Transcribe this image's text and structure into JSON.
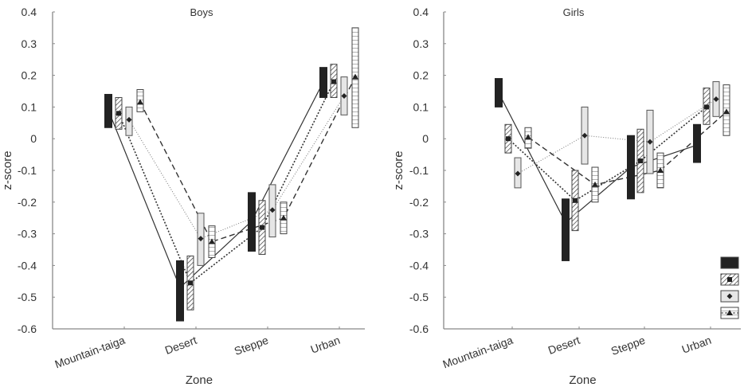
{
  "chart_data": [
    {
      "type": "line",
      "title": "Boys",
      "xlabel": "Zone",
      "ylabel": "z-score",
      "categories": [
        "Mountain-taiga",
        "Desert",
        "Steppe",
        "Urban"
      ],
      "ylim": [
        -0.6,
        0.4
      ],
      "yticks": [
        "0.4",
        "0.3",
        "0.2",
        "0.1",
        "0",
        "-0.1",
        "-0.2",
        "-0.3",
        "-0.4",
        "-0.5",
        "-0.6"
      ],
      "grid": false,
      "series": [
        {
          "style": "solid-black-bar",
          "mean": [
            0.09,
            -0.47,
            -0.26,
            0.18
          ],
          "low": [
            0.035,
            -0.575,
            -0.355,
            0.13
          ],
          "high": [
            0.14,
            -0.385,
            -0.17,
            0.225
          ]
        },
        {
          "style": "hatched-square",
          "mean": [
            0.08,
            -0.455,
            -0.28,
            0.18
          ],
          "low": [
            0.03,
            -0.54,
            -0.365,
            0.13
          ],
          "high": [
            0.13,
            -0.37,
            -0.195,
            0.235
          ]
        },
        {
          "style": "light-diamond",
          "mean": [
            0.06,
            -0.315,
            -0.225,
            0.135
          ],
          "low": [
            0.01,
            -0.4,
            -0.31,
            0.075
          ],
          "high": [
            0.1,
            -0.235,
            -0.145,
            0.195
          ]
        },
        {
          "style": "striped-triangle",
          "mean": [
            0.115,
            -0.325,
            -0.25,
            0.195
          ],
          "low": [
            0.085,
            -0.375,
            -0.3,
            0.035
          ],
          "high": [
            0.155,
            -0.275,
            -0.2,
            0.35
          ]
        }
      ]
    },
    {
      "type": "line",
      "title": "Girls",
      "xlabel": "Zone",
      "ylabel": "z-score",
      "categories": [
        "Mountain-taiga",
        "Desert",
        "Steppe",
        "Urban"
      ],
      "ylim": [
        -0.6,
        0.4
      ],
      "yticks": [
        "0.4",
        "0.3",
        "0.2",
        "0.1",
        "0",
        "-0.1",
        "-0.2",
        "-0.3",
        "-0.4",
        "-0.5",
        "-0.6"
      ],
      "grid": false,
      "legend": "bottom-right",
      "series": [
        {
          "style": "solid-black-bar",
          "mean": [
            0.145,
            -0.265,
            -0.09,
            -0.02
          ],
          "low": [
            0.1,
            -0.385,
            -0.19,
            -0.075
          ],
          "high": [
            0.19,
            -0.19,
            0.01,
            0.045
          ]
        },
        {
          "style": "hatched-square",
          "mean": [
            0.0,
            -0.195,
            -0.07,
            0.1
          ],
          "low": [
            -0.045,
            -0.29,
            -0.17,
            0.045
          ],
          "high": [
            0.045,
            -0.1,
            0.03,
            0.16
          ]
        },
        {
          "style": "light-diamond",
          "mean": [
            -0.11,
            0.01,
            -0.01,
            0.125
          ],
          "low": [
            -0.155,
            -0.08,
            -0.11,
            0.07
          ],
          "high": [
            -0.06,
            0.1,
            0.09,
            0.18
          ]
        },
        {
          "style": "striped-triangle",
          "mean": [
            0.005,
            -0.145,
            -0.1,
            0.085
          ],
          "low": [
            -0.03,
            -0.2,
            -0.155,
            0.01
          ],
          "high": [
            0.035,
            -0.09,
            -0.045,
            0.17
          ]
        }
      ]
    }
  ],
  "colors": {
    "axis": "#888888",
    "black": "#222222",
    "light_fill": "#d0d0d0"
  }
}
